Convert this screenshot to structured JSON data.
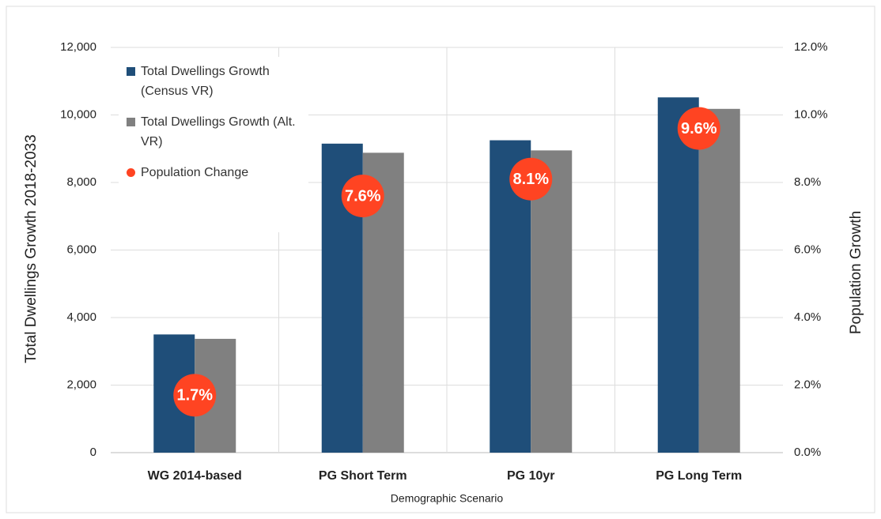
{
  "chart_data": {
    "type": "bar",
    "categories": [
      "WG 2014-based",
      "PG Short Term",
      "PG 10yr",
      "PG Long Term"
    ],
    "series": [
      {
        "name": "Total Dwellings Growth (Census VR)",
        "color": "#1f4e79",
        "values": [
          3500,
          9150,
          9250,
          10520
        ]
      },
      {
        "name": "Total Dwellings Growth (Alt. VR)",
        "color": "#808080",
        "values": [
          3370,
          8880,
          8950,
          10180
        ]
      },
      {
        "name": "Population Change",
        "type": "scatter",
        "axis": "y2",
        "color": "#ff4422",
        "values": [
          1.7,
          7.6,
          8.1,
          9.6
        ],
        "value_labels": [
          "1.7%",
          "7.6%",
          "8.1%",
          "9.6%"
        ]
      }
    ],
    "x_label": "Demographic Scenario",
    "y_label": "Total Dwellings Growth 2018-2033",
    "y2_label": "Population Growth",
    "ylim": [
      0,
      12000
    ],
    "yticks": [
      0,
      {
        "value": 2000,
        "label": "2,000"
      },
      {
        "value": 4000,
        "label": "4,000"
      },
      {
        "value": 6000,
        "label": "6,000"
      },
      {
        "value": 8000,
        "label": "8,000"
      },
      {
        "value": 10000,
        "label": "10,000"
      },
      {
        "value": 12000,
        "label": "12,000"
      }
    ],
    "y2lim": [
      0,
      12
    ],
    "y2ticks": [
      {
        "value": 0,
        "label": "0.0%"
      },
      {
        "value": 2,
        "label": "2.0%"
      },
      {
        "value": 4,
        "label": "4.0%"
      },
      {
        "value": 6,
        "label": "6.0%"
      },
      {
        "value": 8,
        "label": "8.0%"
      },
      {
        "value": 10,
        "label": "10.0%"
      },
      {
        "value": 12,
        "label": "12.0%"
      }
    ],
    "grid": true,
    "legend": "upper left"
  }
}
